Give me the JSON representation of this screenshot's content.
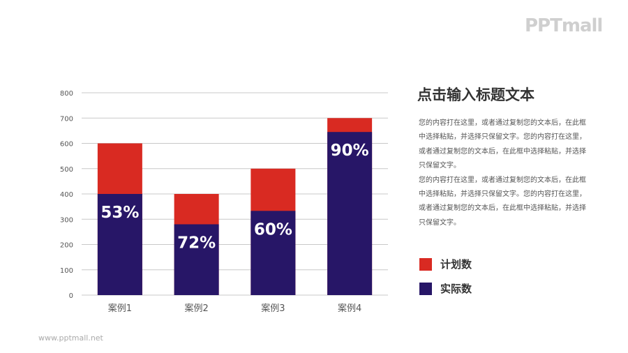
{
  "logo": "PPTmall",
  "chart_data": {
    "type": "bar",
    "categories": [
      "案例1",
      "案例2",
      "案例3",
      "案例4"
    ],
    "series": [
      {
        "name": "计划数",
        "values": [
          600,
          400,
          500,
          700
        ],
        "color": "#d92a22"
      },
      {
        "name": "实际数",
        "values": [
          400,
          280,
          333,
          645
        ],
        "color": "#271667"
      }
    ],
    "data_labels": [
      "53%",
      "72%",
      "60%",
      "90%"
    ],
    "ylim": [
      0,
      800
    ],
    "yticks": [
      0,
      100,
      200,
      300,
      400,
      500,
      600,
      700,
      800
    ],
    "grid": true,
    "overlap": true,
    "legend": "right"
  },
  "panel": {
    "title": "点击输入标题文本",
    "paragraphs": [
      "您的内容打在这里，或者通过复制您的文本后，在此框中选择粘贴，并选择只保留文字。您的内容打在这里，或者通过复制您的文本后，在此框中选择粘贴，并选择只保留文字。",
      "您的内容打在这里，或者通过复制您的文本后，在此框中选择粘贴，并选择只保留文字。您的内容打在这里，或者通过复制您的文本后，在此框中选择粘贴，并选择只保留文字。"
    ]
  },
  "footer": {
    "url": "www.pptmall.net"
  }
}
